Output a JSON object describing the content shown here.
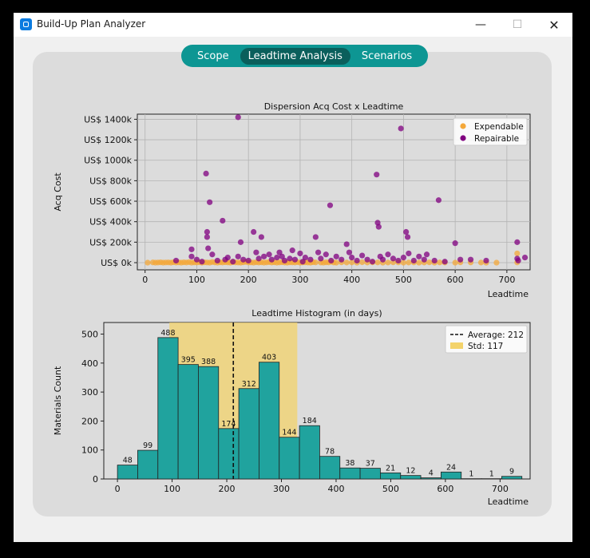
{
  "window": {
    "title": "Build-Up Plan Analyzer",
    "minimize": "—",
    "maximize": "☐",
    "close": "✕"
  },
  "tabs": [
    {
      "label": "Scope",
      "active": false
    },
    {
      "label": "Leadtime Analysis",
      "active": true
    },
    {
      "label": "Scenarios",
      "active": false
    }
  ],
  "colors": {
    "expendable": "#f4a83a",
    "repairable": "#800080",
    "bar": "#20a39e",
    "std_band": "#f3d36b"
  },
  "chart_data": [
    {
      "type": "scatter",
      "title": "Dispersion Acq Cost x Leadtime",
      "xlabel": "Leadtime",
      "ylabel": "Acq Cost",
      "xlim": [
        -15,
        745
      ],
      "ylim": [
        -70000,
        1450000
      ],
      "xticks": [
        0,
        100,
        200,
        300,
        400,
        500,
        600,
        700
      ],
      "yticks": [
        0,
        200000,
        400000,
        600000,
        800000,
        1000000,
        1200000,
        1400000
      ],
      "ytick_labels": [
        "US$ 0k",
        "US$ 200k",
        "US$ 400k",
        "US$ 600k",
        "US$ 800k",
        "US$ 1000k",
        "US$ 1200k",
        "US$ 1400k"
      ],
      "grid": true,
      "legend_position": "top-right",
      "series": [
        {
          "name": "Expendable",
          "color": "#f4a83a",
          "points": [
            [
              5,
              0
            ],
            [
              15,
              2000
            ],
            [
              20,
              0
            ],
            [
              25,
              1000
            ],
            [
              30,
              3000
            ],
            [
              35,
              0
            ],
            [
              40,
              1500
            ],
            [
              45,
              2000
            ],
            [
              50,
              0
            ],
            [
              55,
              4000
            ],
            [
              60,
              1000
            ],
            [
              65,
              2500
            ],
            [
              70,
              0
            ],
            [
              75,
              3000
            ],
            [
              80,
              1000
            ],
            [
              85,
              5000
            ],
            [
              90,
              0
            ],
            [
              95,
              2000
            ],
            [
              100,
              1000
            ],
            [
              105,
              4000
            ],
            [
              110,
              0
            ],
            [
              115,
              3000
            ],
            [
              120,
              1500
            ],
            [
              125,
              0
            ],
            [
              130,
              6000
            ],
            [
              135,
              2000
            ],
            [
              140,
              0
            ],
            [
              145,
              3000
            ],
            [
              150,
              1000
            ],
            [
              155,
              4000
            ],
            [
              160,
              2000
            ],
            [
              165,
              0
            ],
            [
              170,
              5000
            ],
            [
              175,
              2000
            ],
            [
              180,
              1000
            ],
            [
              185,
              0
            ],
            [
              190,
              3000
            ],
            [
              195,
              7000
            ],
            [
              200,
              1000
            ],
            [
              205,
              2000
            ],
            [
              210,
              0
            ],
            [
              215,
              4000
            ],
            [
              220,
              1000
            ],
            [
              225,
              3000
            ],
            [
              230,
              0
            ],
            [
              235,
              2000
            ],
            [
              240,
              5000
            ],
            [
              245,
              1000
            ],
            [
              250,
              3000
            ],
            [
              255,
              0
            ],
            [
              260,
              2000
            ],
            [
              265,
              4000
            ],
            [
              270,
              1000
            ],
            [
              275,
              0
            ],
            [
              280,
              3000
            ],
            [
              285,
              2000
            ],
            [
              290,
              1000
            ],
            [
              295,
              5000
            ],
            [
              300,
              0
            ],
            [
              305,
              2000
            ],
            [
              310,
              3000
            ],
            [
              315,
              1000
            ],
            [
              320,
              0
            ],
            [
              325,
              4000
            ],
            [
              330,
              2000
            ],
            [
              340,
              1000
            ],
            [
              345,
              0
            ],
            [
              350,
              3000
            ],
            [
              355,
              2000
            ],
            [
              360,
              8000
            ],
            [
              365,
              1000
            ],
            [
              370,
              0
            ],
            [
              380,
              3000
            ],
            [
              390,
              1000
            ],
            [
              400,
              2000
            ],
            [
              410,
              0
            ],
            [
              420,
              4000
            ],
            [
              430,
              1000
            ],
            [
              440,
              3000
            ],
            [
              450,
              2000
            ],
            [
              460,
              0
            ],
            [
              470,
              1000
            ],
            [
              480,
              3000
            ],
            [
              490,
              2000
            ],
            [
              500,
              0
            ],
            [
              510,
              1000
            ],
            [
              520,
              2000
            ],
            [
              530,
              0
            ],
            [
              540,
              1000
            ],
            [
              550,
              3000
            ],
            [
              560,
              0
            ],
            [
              570,
              2000
            ],
            [
              580,
              1000
            ],
            [
              600,
              0
            ],
            [
              610,
              3000
            ],
            [
              630,
              2000
            ],
            [
              650,
              1000
            ],
            [
              660,
              0
            ],
            [
              680,
              0
            ],
            [
              720,
              90000
            ],
            [
              720,
              2000
            ]
          ]
        },
        {
          "name": "Repairable",
          "color": "#800080",
          "points": [
            [
              60,
              20000
            ],
            [
              90,
              130000
            ],
            [
              90,
              60000
            ],
            [
              100,
              30000
            ],
            [
              110,
              10000
            ],
            [
              118,
              870000
            ],
            [
              120,
              300000
            ],
            [
              120,
              250000
            ],
            [
              122,
              140000
            ],
            [
              125,
              590000
            ],
            [
              130,
              80000
            ],
            [
              140,
              20000
            ],
            [
              150,
              410000
            ],
            [
              155,
              30000
            ],
            [
              160,
              50000
            ],
            [
              170,
              10000
            ],
            [
              180,
              1420000
            ],
            [
              180,
              60000
            ],
            [
              185,
              200000
            ],
            [
              190,
              30000
            ],
            [
              200,
              20000
            ],
            [
              210,
              300000
            ],
            [
              215,
              100000
            ],
            [
              220,
              40000
            ],
            [
              225,
              250000
            ],
            [
              230,
              60000
            ],
            [
              240,
              80000
            ],
            [
              245,
              30000
            ],
            [
              255,
              50000
            ],
            [
              260,
              100000
            ],
            [
              265,
              60000
            ],
            [
              270,
              20000
            ],
            [
              280,
              40000
            ],
            [
              285,
              120000
            ],
            [
              290,
              30000
            ],
            [
              300,
              90000
            ],
            [
              305,
              10000
            ],
            [
              310,
              50000
            ],
            [
              320,
              30000
            ],
            [
              330,
              250000
            ],
            [
              335,
              100000
            ],
            [
              340,
              40000
            ],
            [
              350,
              80000
            ],
            [
              358,
              560000
            ],
            [
              360,
              20000
            ],
            [
              370,
              60000
            ],
            [
              380,
              30000
            ],
            [
              390,
              180000
            ],
            [
              395,
              100000
            ],
            [
              400,
              50000
            ],
            [
              410,
              20000
            ],
            [
              420,
              70000
            ],
            [
              430,
              30000
            ],
            [
              440,
              10000
            ],
            [
              448,
              860000
            ],
            [
              450,
              390000
            ],
            [
              452,
              350000
            ],
            [
              455,
              60000
            ],
            [
              460,
              30000
            ],
            [
              470,
              80000
            ],
            [
              480,
              40000
            ],
            [
              490,
              20000
            ],
            [
              495,
              1310000
            ],
            [
              500,
              50000
            ],
            [
              505,
              300000
            ],
            [
              508,
              250000
            ],
            [
              510,
              90000
            ],
            [
              520,
              20000
            ],
            [
              530,
              60000
            ],
            [
              540,
              30000
            ],
            [
              545,
              80000
            ],
            [
              560,
              20000
            ],
            [
              568,
              610000
            ],
            [
              580,
              10000
            ],
            [
              600,
              190000
            ],
            [
              610,
              30000
            ],
            [
              630,
              30000
            ],
            [
              660,
              20000
            ],
            [
              720,
              200000
            ],
            [
              720,
              40000
            ],
            [
              722,
              20000
            ],
            [
              735,
              50000
            ]
          ]
        }
      ]
    },
    {
      "type": "bar",
      "title": "Leadtime Histogram (in days)",
      "xlabel": "Leadtime",
      "ylabel": "Materials Count",
      "xlim": [
        -25,
        755
      ],
      "ylim": [
        0,
        540
      ],
      "xticks": [
        0,
        100,
        200,
        300,
        400,
        500,
        600,
        700
      ],
      "yticks": [
        0,
        100,
        200,
        300,
        400,
        500
      ],
      "bin_width": 37,
      "bin_start": 0,
      "values": [
        48,
        99,
        488,
        395,
        388,
        174,
        312,
        403,
        144,
        184,
        78,
        38,
        37,
        21,
        12,
        4,
        24,
        1,
        1,
        9
      ],
      "average": 212,
      "std": 117,
      "legend_position": "top-right",
      "legend": [
        "Average: 212",
        "Std: 117"
      ]
    }
  ]
}
